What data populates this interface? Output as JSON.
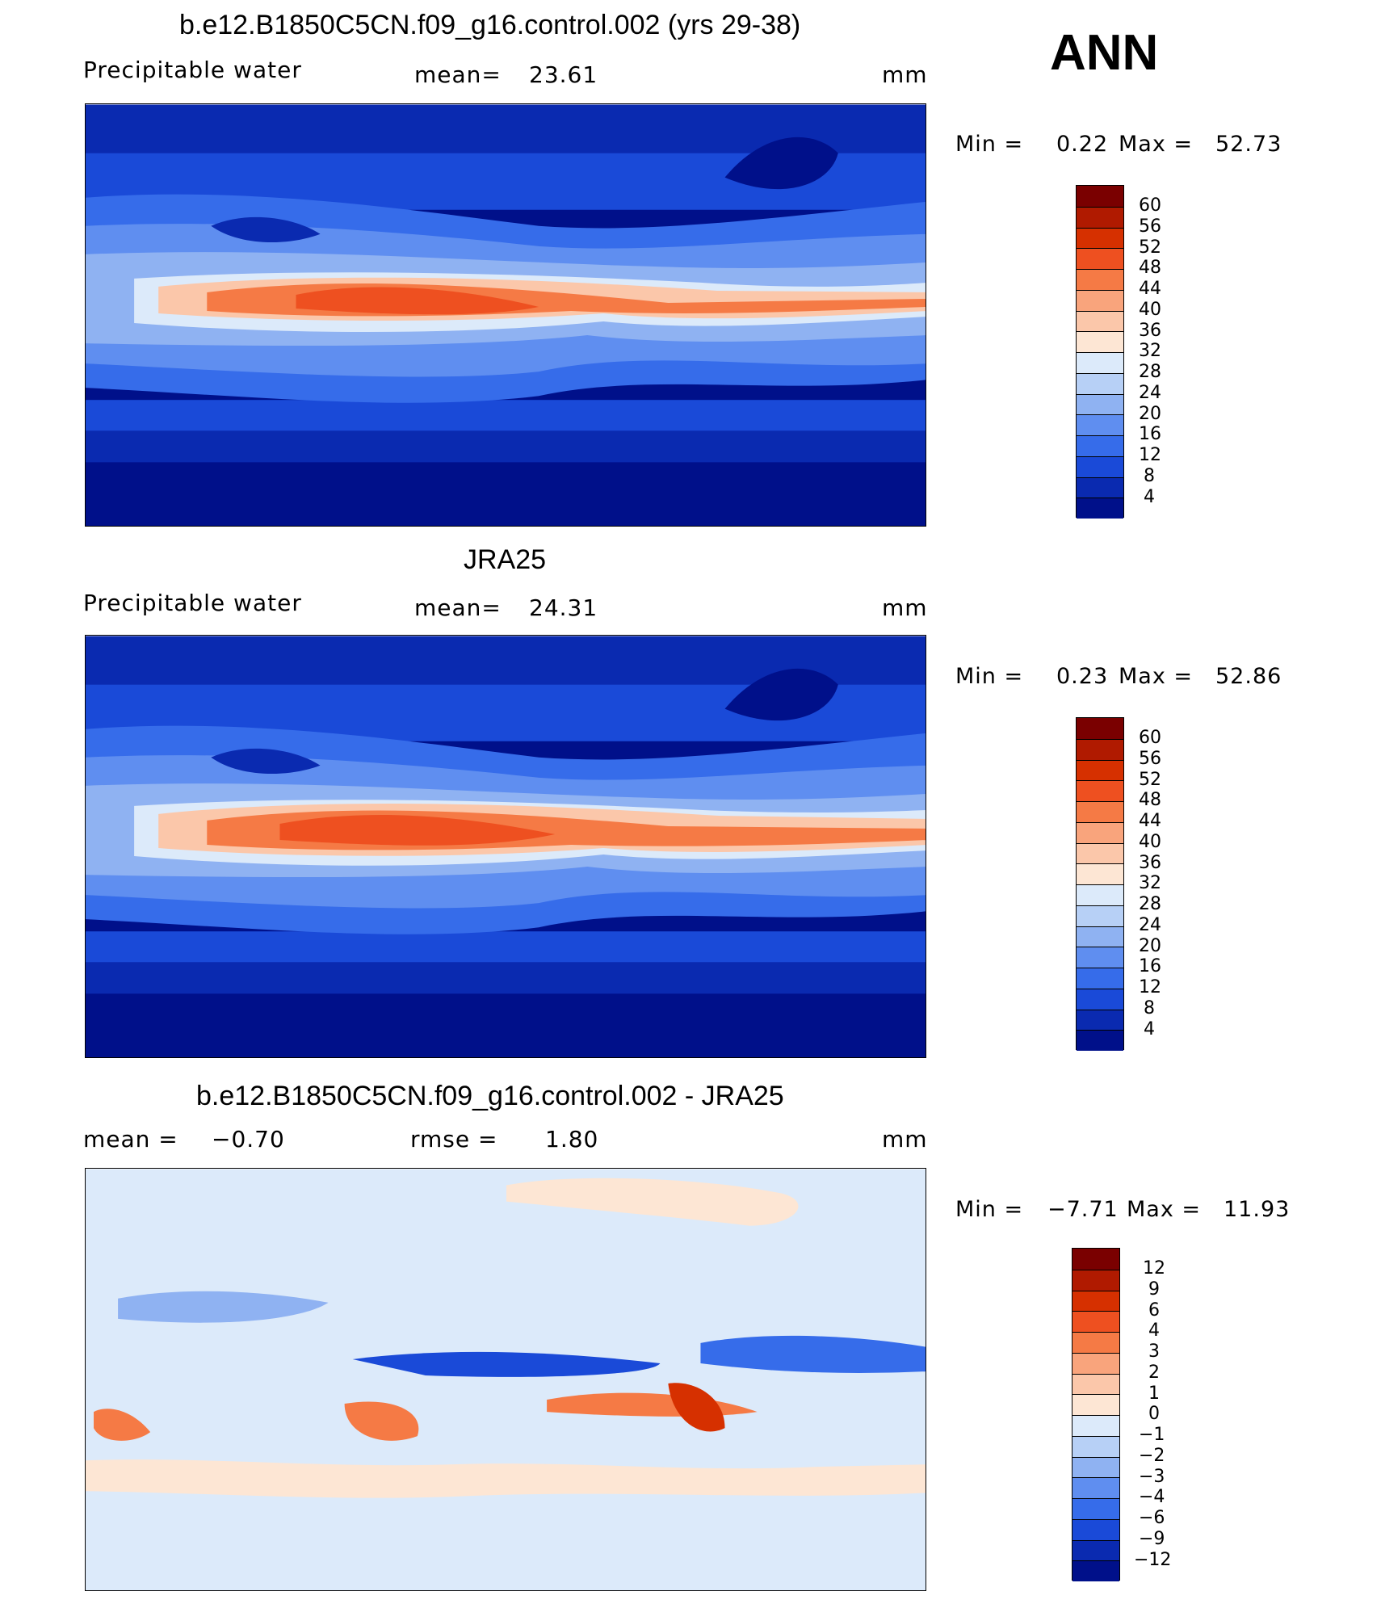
{
  "season": "ANN",
  "panels": [
    {
      "title": "b.e12.B1850C5CN.f09_g16.control.002 (yrs 29-38)",
      "variable": "Precipitable water",
      "stat1_label": "mean=",
      "stat1_value": "23.61",
      "stat2_label": "",
      "stat2_value": "",
      "units": "mm",
      "min_label": "Min =",
      "min_value": "0.22",
      "max_label": "Max =",
      "max_value": "52.73",
      "colorbar_labels": [
        "60",
        "56",
        "52",
        "48",
        "44",
        "40",
        "36",
        "32",
        "28",
        "24",
        "20",
        "16",
        "12",
        "8",
        "4"
      ],
      "colors": [
        "#7a0000",
        "#b01a00",
        "#d63000",
        "#ee5020",
        "#f57a45",
        "#f9a47c",
        "#fbc7aa",
        "#fde6d4",
        "#dceafa",
        "#b7d0f6",
        "#8fb2f2",
        "#5f8ef0",
        "#366cea",
        "#1a4ad8",
        "#0a2ab0",
        "#00108a"
      ]
    },
    {
      "title": "JRA25",
      "variable": "Precipitable water",
      "stat1_label": "mean=",
      "stat1_value": "24.31",
      "stat2_label": "",
      "stat2_value": "",
      "units": "mm",
      "min_label": "Min =",
      "min_value": "0.23",
      "max_label": "Max =",
      "max_value": "52.86",
      "colorbar_labels": [
        "60",
        "56",
        "52",
        "48",
        "44",
        "40",
        "36",
        "32",
        "28",
        "24",
        "20",
        "16",
        "12",
        "8",
        "4"
      ],
      "colors": [
        "#7a0000",
        "#b01a00",
        "#d63000",
        "#ee5020",
        "#f57a45",
        "#f9a47c",
        "#fbc7aa",
        "#fde6d4",
        "#dceafa",
        "#b7d0f6",
        "#8fb2f2",
        "#5f8ef0",
        "#366cea",
        "#1a4ad8",
        "#0a2ab0",
        "#00108a"
      ]
    },
    {
      "title": "b.e12.B1850C5CN.f09_g16.control.002 - JRA25",
      "variable": "",
      "stat1_label": "mean =",
      "stat1_value": "−0.70",
      "stat2_label": "rmse =",
      "stat2_value": "1.80",
      "units": "mm",
      "min_label": "Min =",
      "min_value": "−7.71",
      "max_label": "Max =",
      "max_value": "11.93",
      "colorbar_labels": [
        "12",
        "9",
        "6",
        "4",
        "3",
        "2",
        "1",
        "0",
        "−1",
        "−2",
        "−3",
        "−4",
        "−6",
        "−9",
        "−12"
      ],
      "colors": [
        "#7a0000",
        "#b01a00",
        "#d63000",
        "#ee5020",
        "#f57a45",
        "#f9a47c",
        "#fbc7aa",
        "#fde6d4",
        "#dceafa",
        "#b7d0f6",
        "#8fb2f2",
        "#5f8ef0",
        "#366cea",
        "#1a4ad8",
        "#0a2ab0",
        "#00108a"
      ]
    }
  ]
}
